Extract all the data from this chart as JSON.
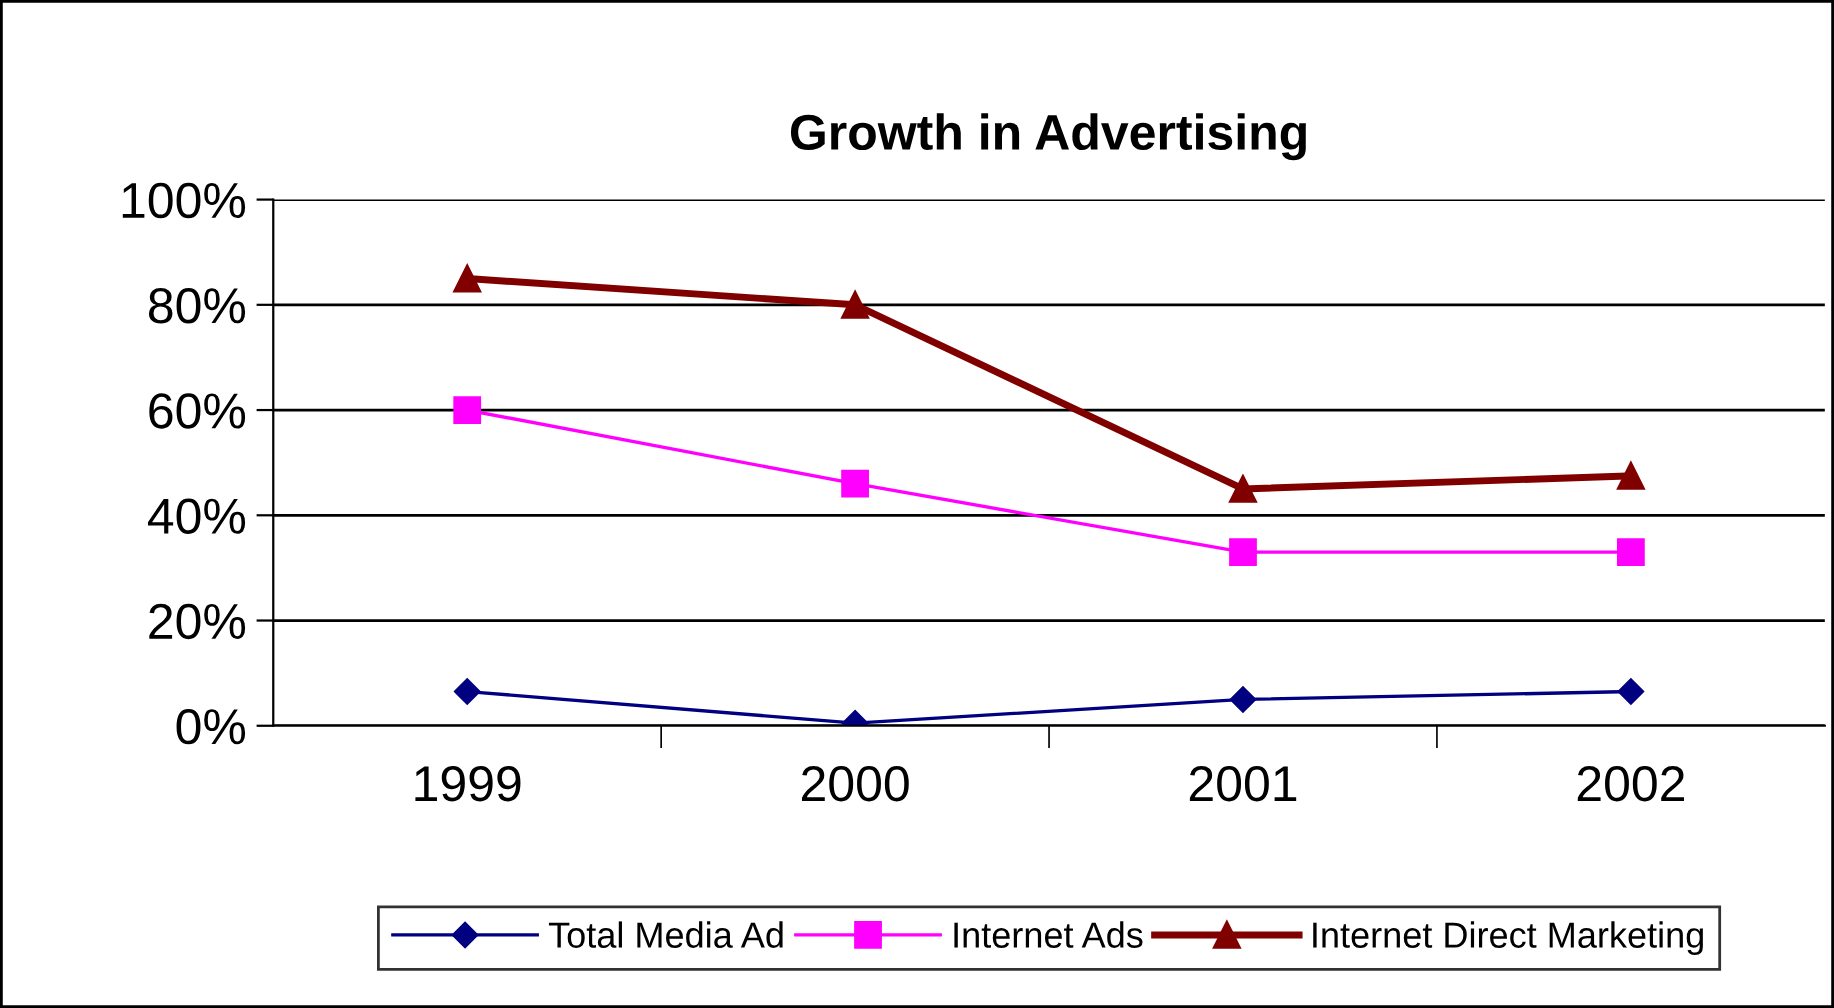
{
  "chart_data": {
    "type": "line",
    "title": "Growth in Advertising",
    "categories": [
      "1999",
      "2000",
      "2001",
      "2002"
    ],
    "series": [
      {
        "name": "Total Media Ad",
        "color": "#000080",
        "values": [
          6.5,
          0.5,
          5,
          6.5
        ],
        "marker": "diamond"
      },
      {
        "name": "Internet Ads",
        "color": "#ff00ff",
        "values": [
          60,
          46,
          33,
          33
        ],
        "marker": "square"
      },
      {
        "name": "Internet Direct Marketing",
        "color": "#800000",
        "values": [
          85,
          80,
          45,
          47.5
        ],
        "marker": "triangle"
      }
    ],
    "ylim": [
      0,
      100
    ],
    "yticks": [
      {
        "value": 0,
        "label": "0%"
      },
      {
        "value": 20,
        "label": "20%"
      },
      {
        "value": 40,
        "label": "40%"
      },
      {
        "value": 60,
        "label": "60%"
      },
      {
        "value": 80,
        "label": "80%"
      },
      {
        "value": 100,
        "label": "100%"
      }
    ],
    "grid": "y",
    "legend": "bottom",
    "line_style": "solid"
  }
}
